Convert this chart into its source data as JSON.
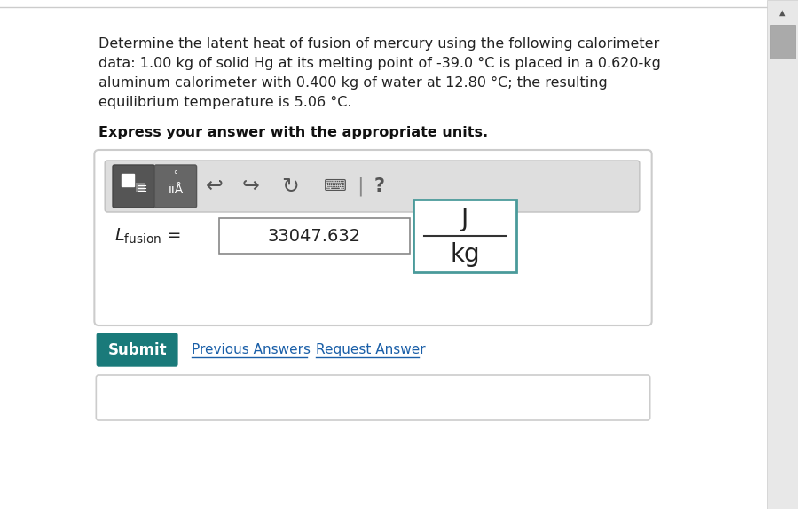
{
  "bg_color": "#f5f5f5",
  "page_bg": "#ffffff",
  "problem_text_line1": "Determine the latent heat of fusion of mercury using the following calorimeter",
  "problem_text_line2": "data: 1.00 kg of solid Hg at its melting point of -39.0 °C is placed in a 0.620-kg",
  "problem_text_line3": "aluminum calorimeter with 0.400 kg of water at 12.80 °C; the resulting",
  "problem_text_line4": "equilibrium temperature is 5.06 °C.",
  "bold_text": "Express your answer with the appropriate units.",
  "answer_value": "33047.632",
  "unit_numerator": "J",
  "unit_denominator": "kg",
  "submit_btn_color": "#1a7a7a",
  "submit_btn_text": "Submit",
  "submit_btn_text_color": "#ffffff",
  "link_color": "#1a5fa8",
  "previous_answers_text": "Previous Answers",
  "request_answer_text": "Request Answer",
  "toolbar_bg": "#d0d0d0",
  "input_border_color": "#4a9a9a",
  "box_border_color": "#cccccc"
}
